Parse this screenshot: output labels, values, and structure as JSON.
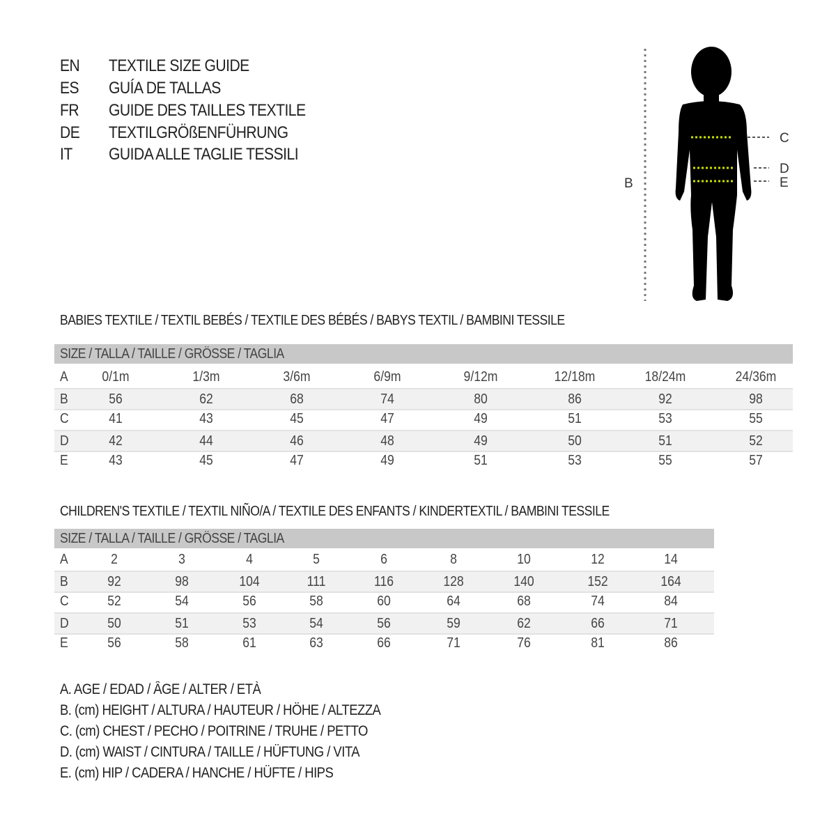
{
  "titles": [
    {
      "code": "EN",
      "text": "TEXTILE SIZE GUIDE"
    },
    {
      "code": "ES",
      "text": "GUÍA DE TALLAS"
    },
    {
      "code": "FR",
      "text": "GUIDE DES TAILLES TEXTILE"
    },
    {
      "code": "DE",
      "text": "TEXTILGRÖßENFÜHRUNG"
    },
    {
      "code": "IT",
      "text": "GUIDA ALLE TAGLIE TESSILI"
    }
  ],
  "figure": {
    "labels": {
      "B": "B",
      "C": "C",
      "D": "D",
      "E": "E"
    },
    "measure_color": "#c8e000"
  },
  "babies": {
    "title": "BABIES TEXTILE / TEXTIL BEBÉS / TEXTILE DES BÉBÉS / BABYS TEXTIL  / BAMBINI TESSILE",
    "header": "SIZE / TALLA / TAILLE / GRÖSSE / TAGLIA",
    "rows": [
      {
        "label": "A",
        "values": [
          "0/1m",
          "1/3m",
          "3/6m",
          "6/9m",
          "9/12m",
          "12/18m",
          "18/24m",
          "24/36m"
        ]
      },
      {
        "label": "B",
        "values": [
          "56",
          "62",
          "68",
          "74",
          "80",
          "86",
          "92",
          "98"
        ]
      },
      {
        "label": "C",
        "values": [
          "41",
          "43",
          "45",
          "47",
          "49",
          "51",
          "53",
          "55"
        ]
      },
      {
        "label": "D",
        "values": [
          "42",
          "44",
          "46",
          "48",
          "49",
          "50",
          "51",
          "52"
        ]
      },
      {
        "label": "E",
        "values": [
          "43",
          "45",
          "47",
          "49",
          "51",
          "53",
          "55",
          "57"
        ]
      }
    ]
  },
  "children": {
    "title": "CHILDREN'S TEXTILE / TEXTIL NIÑO/A / TEXTILE DES ENFANTS / KINDERTEXTIL / BAMBINI TESSILE",
    "header": "SIZE / TALLA / TAILLE / GRÖSSE / TAGLIA",
    "rows": [
      {
        "label": "A",
        "values": [
          "2",
          "3",
          "4",
          "5",
          "6",
          "8",
          "10",
          "12",
          "14"
        ]
      },
      {
        "label": "B",
        "values": [
          "92",
          "98",
          "104",
          "111",
          "116",
          "128",
          "140",
          "152",
          "164"
        ]
      },
      {
        "label": "C",
        "values": [
          "52",
          "54",
          "56",
          "58",
          "60",
          "64",
          "68",
          "74",
          "84"
        ]
      },
      {
        "label": "D",
        "values": [
          "50",
          "51",
          "53",
          "54",
          "56",
          "59",
          "62",
          "66",
          "71"
        ]
      },
      {
        "label": "E",
        "values": [
          "56",
          "58",
          "61",
          "63",
          "66",
          "71",
          "76",
          "81",
          "86"
        ]
      }
    ]
  },
  "legend": [
    "A. AGE / EDAD / ÂGE / ALTER / ETÀ",
    "B. (cm) HEIGHT / ALTURA / HAUTEUR / HÖHE / ALTEZZA",
    "C. (cm) CHEST / PECHO / POITRINE / TRUHE / PETTO",
    "D. (cm) WAIST / CINTURA / TAILLE / HÜFTUNG / VITA",
    "E. (cm) HIP / CADERA / HANCHE / HÜFTE / HIPS"
  ]
}
